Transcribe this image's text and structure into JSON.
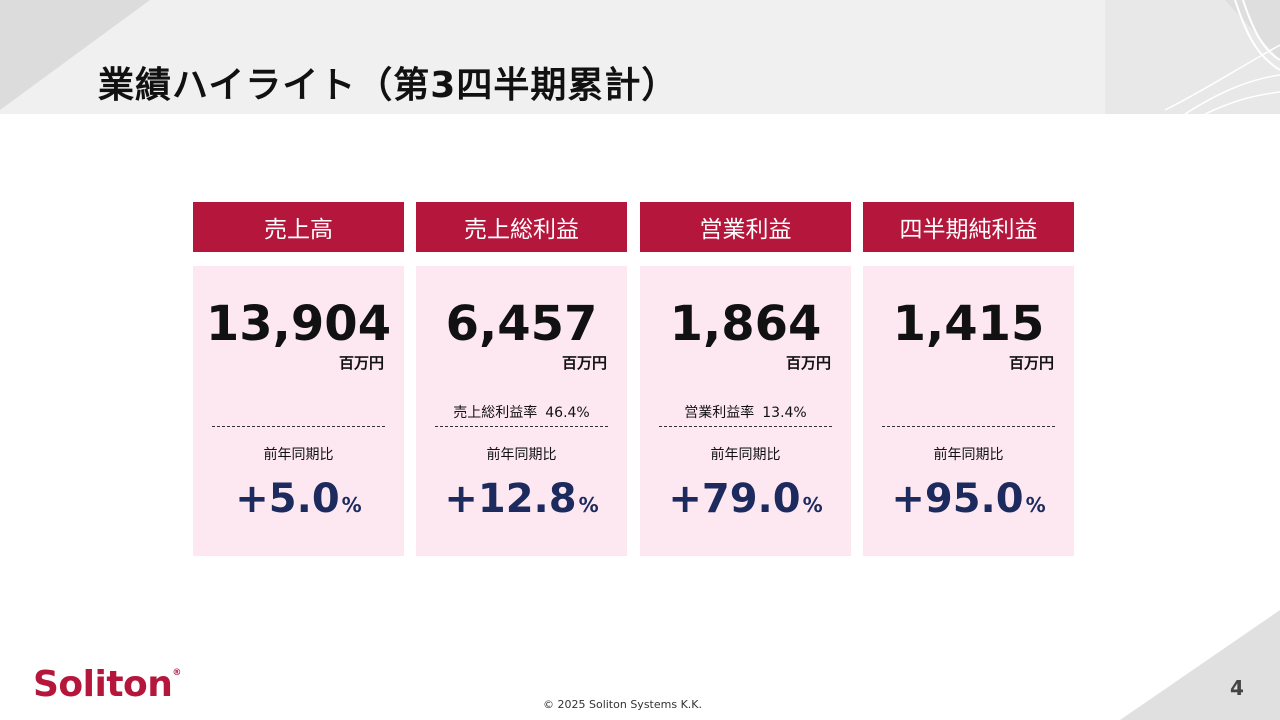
{
  "slide": {
    "title": "業績ハイライト（第3四半期累計）",
    "page_number": "4",
    "copyright": "© 2025 Soliton Systems K.K.",
    "logo_text": "Soliton",
    "logo_mark": "®"
  },
  "colors": {
    "header_red": "#b5163c",
    "card_pink": "#fde8f2",
    "value_navy": "#1c2a5e"
  },
  "cards": [
    {
      "header": "売上高",
      "value": "13,904",
      "unit": "百万円",
      "ratio_label": "",
      "ratio_value": "",
      "yoy_label": "前年同期比",
      "yoy_value": "+5.0",
      "yoy_unit": "%"
    },
    {
      "header": "売上総利益",
      "value": "6,457",
      "unit": "百万円",
      "ratio_label": "売上総利益率",
      "ratio_value": "46.4%",
      "yoy_label": "前年同期比",
      "yoy_value": "+12.8",
      "yoy_unit": "%"
    },
    {
      "header": "営業利益",
      "value": "1,864",
      "unit": "百万円",
      "ratio_label": "営業利益率",
      "ratio_value": "13.4%",
      "yoy_label": "前年同期比",
      "yoy_value": "+79.0",
      "yoy_unit": "%"
    },
    {
      "header": "四半期純利益",
      "value": "1,415",
      "unit": "百万円",
      "ratio_label": "",
      "ratio_value": "",
      "yoy_label": "前年同期比",
      "yoy_value": "+95.0",
      "yoy_unit": "%"
    }
  ]
}
